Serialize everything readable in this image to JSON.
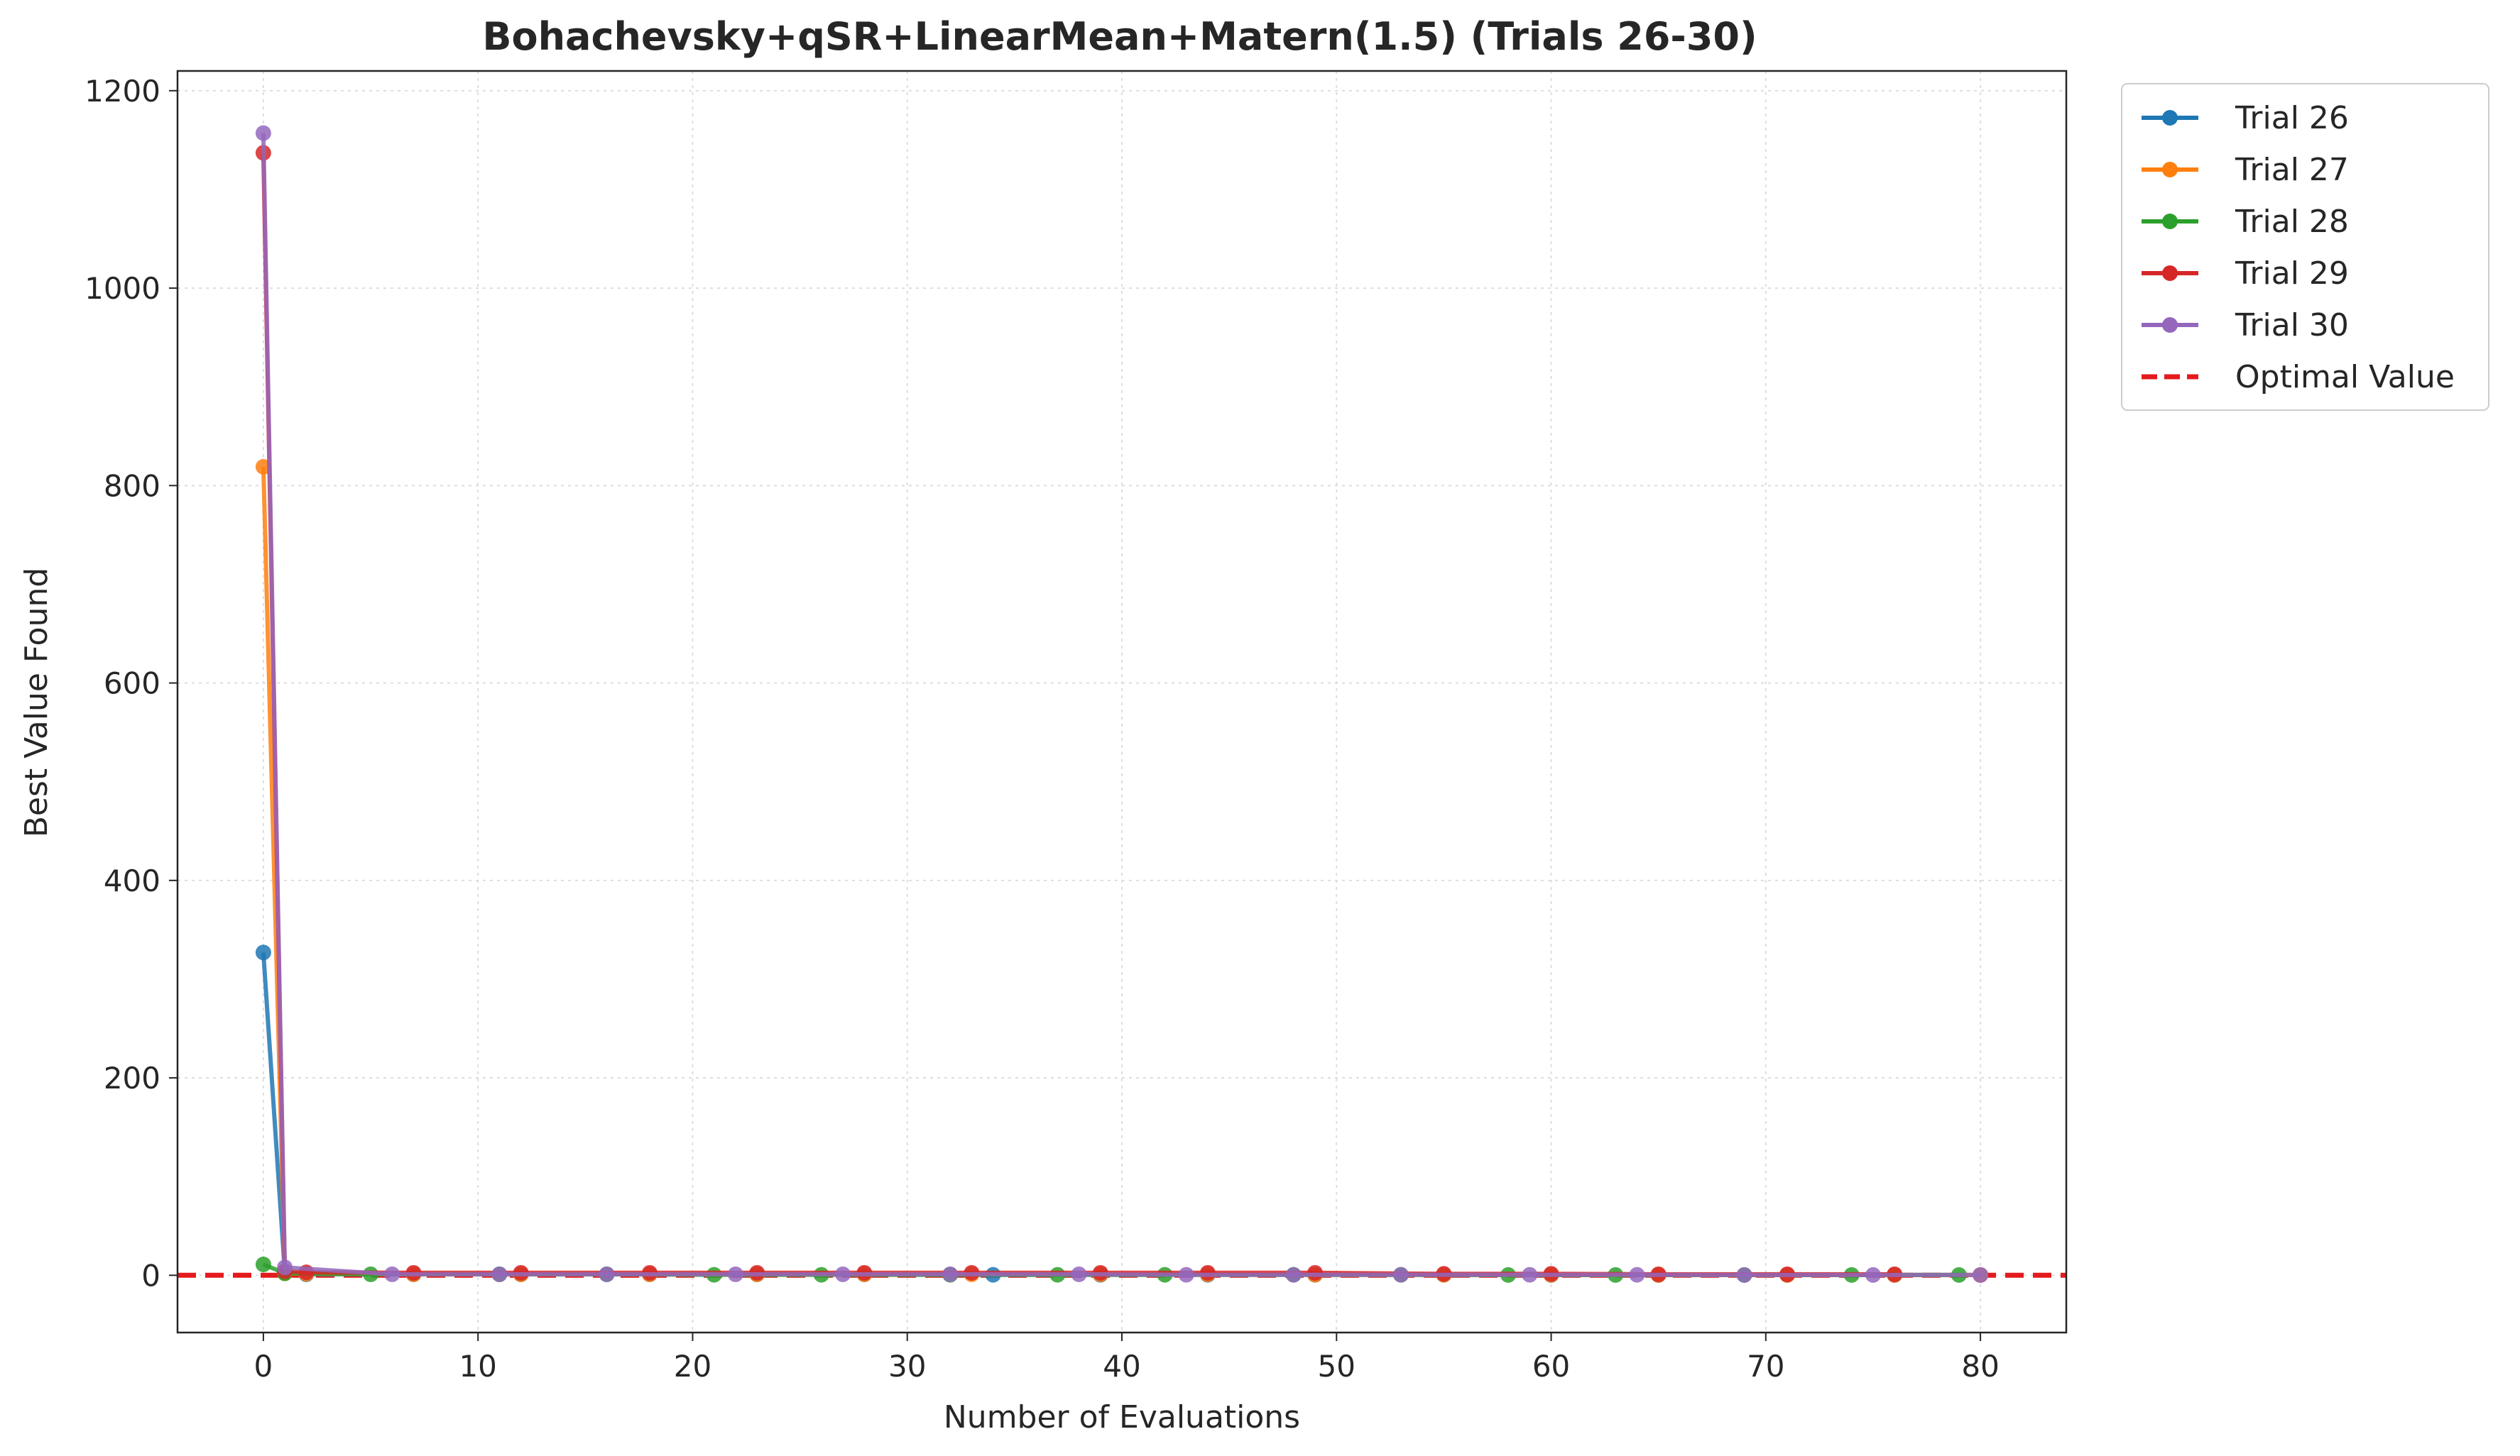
{
  "chart_data": {
    "type": "line",
    "title": "Bohachevsky+qSR+LinearMean+Matern(1.5) (Trials 26-30)",
    "xlabel": "Number of Evaluations",
    "ylabel": "Best Value Found",
    "xlim": [
      -4,
      84
    ],
    "ylim": [
      -58,
      1220
    ],
    "xticks": [
      0,
      10,
      20,
      30,
      40,
      50,
      60,
      70,
      80
    ],
    "yticks": [
      0,
      200,
      400,
      600,
      800,
      1000,
      1200
    ],
    "grid": true,
    "legend_position": "outside-top-right",
    "series": [
      {
        "name": "Trial 26",
        "color": "#1f77b4",
        "x": [
          0,
          1,
          2,
          7,
          12,
          18,
          23,
          28,
          34,
          39,
          44,
          49,
          55,
          60,
          65,
          71,
          76,
          80
        ],
        "y": [
          327,
          3,
          1,
          1,
          1,
          1,
          1,
          1,
          0.5,
          0.5,
          0.5,
          0.5,
          0.5,
          0.3,
          0.3,
          0.3,
          0.3,
          0.3
        ]
      },
      {
        "name": "Trial 27",
        "color": "#ff7f0e",
        "x": [
          0,
          1,
          2,
          7,
          12,
          18,
          23,
          28,
          33,
          39,
          44,
          49,
          55,
          60,
          65,
          71,
          76,
          80
        ],
        "y": [
          819,
          2,
          1.5,
          1,
          1,
          1,
          1,
          1,
          1,
          1,
          1,
          0.5,
          0.5,
          0.5,
          0.3,
          0.3,
          0.3,
          0.3
        ]
      },
      {
        "name": "Trial 28",
        "color": "#2ca02c",
        "x": [
          0,
          1,
          5,
          11,
          16,
          21,
          26,
          32,
          37,
          42,
          48,
          53,
          58,
          63,
          69,
          74,
          79
        ],
        "y": [
          11,
          2,
          1,
          1,
          1,
          0.5,
          0.5,
          0.5,
          0.5,
          0.5,
          0.5,
          0.5,
          0.3,
          0.3,
          0.3,
          0.3,
          0.3
        ]
      },
      {
        "name": "Trial 29",
        "color": "#d62728",
        "x": [
          0,
          1,
          2,
          7,
          12,
          18,
          23,
          28,
          33,
          39,
          44,
          49,
          55,
          60,
          65,
          71,
          76
        ],
        "y": [
          1137,
          4,
          3,
          2.5,
          2.5,
          2.5,
          2.5,
          2.5,
          2.5,
          2.5,
          2.5,
          2.5,
          1.5,
          1.5,
          1,
          1,
          1
        ]
      },
      {
        "name": "Trial 30",
        "color": "#9467bd",
        "x": [
          0,
          1,
          6,
          11,
          16,
          22,
          27,
          32,
          38,
          43,
          48,
          53,
          59,
          64,
          69,
          75,
          80
        ],
        "y": [
          1157,
          8,
          1,
          1,
          1,
          1,
          1,
          1,
          1,
          0.5,
          0.5,
          0.5,
          0.5,
          0.5,
          0.3,
          0.3,
          0.3
        ]
      }
    ],
    "reference_line": {
      "name": "Optimal Value",
      "y": 0,
      "color": "#e41a1c",
      "style": "dashed"
    }
  }
}
